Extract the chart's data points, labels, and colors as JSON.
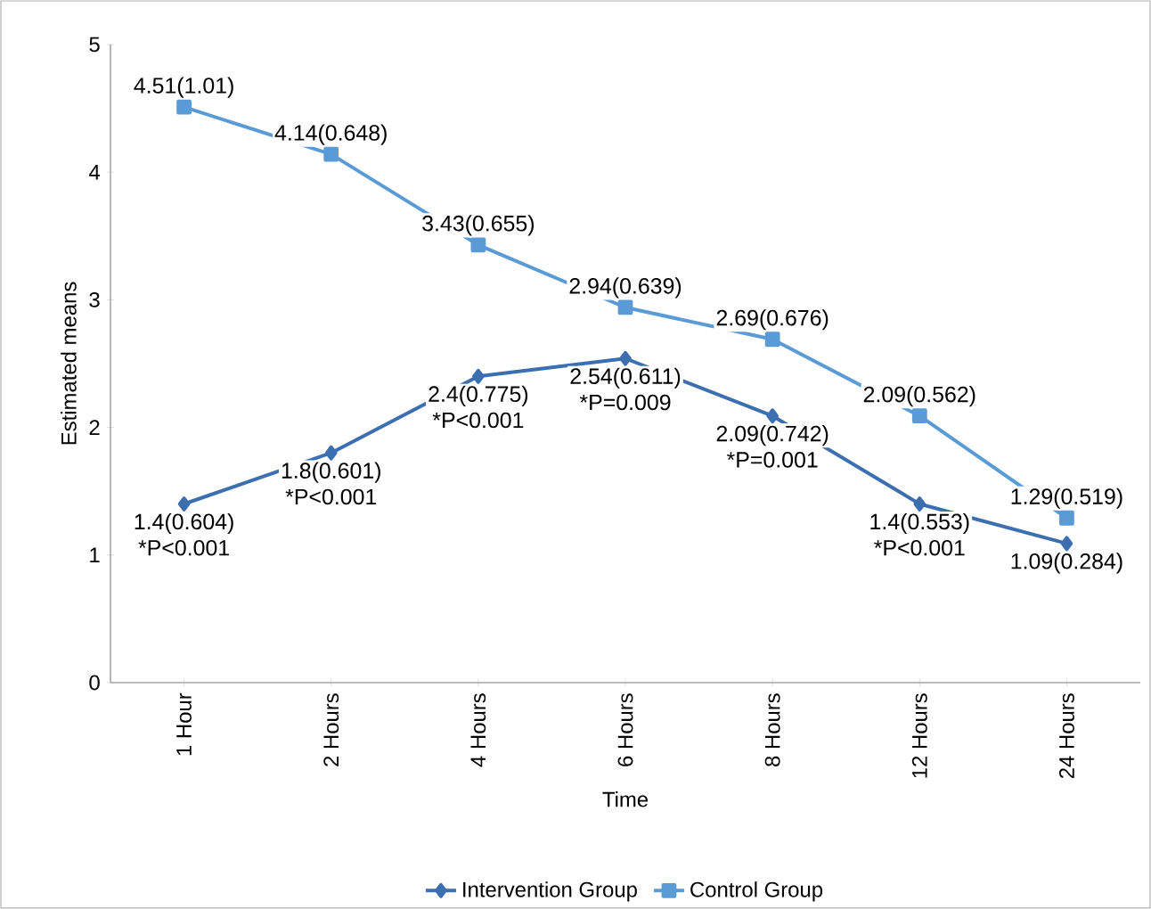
{
  "chart_data": {
    "type": "line",
    "xlabel": "Time",
    "ylabel": "Estimated means",
    "categories": [
      "1 Hour",
      "2 Hours",
      "4 Hours",
      "6 Hours",
      "8 Hours",
      "12 Hours",
      "24 Hours"
    ],
    "series": [
      {
        "name": "Intervention Group",
        "color": "#3c6fb0",
        "marker": "diamond",
        "values": [
          1.4,
          1.8,
          2.4,
          2.54,
          2.09,
          1.4,
          1.09
        ],
        "value_labels": [
          "1.4(0.604)",
          "1.8(0.601)",
          "2.4(0.775)",
          "2.54(0.611)",
          "2.09(0.742)",
          "1.4(0.553)",
          "1.09(0.284)"
        ]
      },
      {
        "name": "Control Group",
        "color": "#5b9bd5",
        "marker": "square",
        "values": [
          4.51,
          4.14,
          3.43,
          2.94,
          2.69,
          2.09,
          1.29
        ],
        "value_labels": [
          "4.51(1.01)",
          "4.14(0.648)",
          "3.43(0.655)",
          "2.94(0.639)",
          "2.69(0.676)",
          "2.09(0.562)",
          "1.29(0.519)"
        ]
      }
    ],
    "ylim": [
      0,
      5
    ],
    "yticks": [
      0,
      1,
      2,
      3,
      4,
      5
    ],
    "grid": false,
    "legend": "bottom",
    "line_style": "solid",
    "annotations": [
      {
        "text": "*P<0.001",
        "x": "1 Hour",
        "y": 1.4
      },
      {
        "text": "*P<0.001",
        "x": "2 Hours",
        "y": 1.8
      },
      {
        "text": "*P<0.001",
        "x": "4 Hours",
        "y": 2.4
      },
      {
        "text": "*P=0.009",
        "x": "6 Hours",
        "y": 2.54
      },
      {
        "text": "*P=0.001",
        "x": "8 Hours",
        "y": 2.09
      },
      {
        "text": "*P<0.001",
        "x": "12 Hours",
        "y": 1.4
      }
    ]
  }
}
